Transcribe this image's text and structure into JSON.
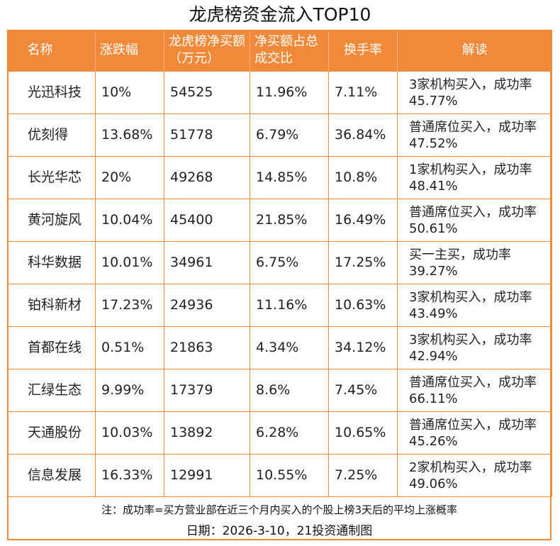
{
  "title": "龙虎榜资金流入TOP10",
  "headers": {
    "name": "名称",
    "change": "涨跌幅",
    "net_buy": "龙虎榜净买额（万元）",
    "ratio": "净买额占总成交比",
    "turnover": "换手率",
    "read": "解读"
  },
  "rows": [
    {
      "name": "光迅科技",
      "change": "10%",
      "net_buy": "54525",
      "ratio": "11.96%",
      "turnover": "7.11%",
      "read": "3家机构买入，成功率45.77%"
    },
    {
      "name": "优刻得",
      "change": "13.68%",
      "net_buy": "51778",
      "ratio": "6.79%",
      "turnover": "36.84%",
      "read": "普通席位买入，成功率47.52%"
    },
    {
      "name": "长光华芯",
      "change": "20%",
      "net_buy": "49268",
      "ratio": "14.85%",
      "turnover": "10.8%",
      "read": "1家机构买入，成功率48.41%"
    },
    {
      "name": "黄河旋风",
      "change": "10.04%",
      "net_buy": "45400",
      "ratio": "21.85%",
      "turnover": "16.49%",
      "read": "普通席位买入，成功率50.61%"
    },
    {
      "name": "科华数据",
      "change": "10.01%",
      "net_buy": "34961",
      "ratio": "6.75%",
      "turnover": "17.25%",
      "read": "买一主买，成功率39.27%"
    },
    {
      "name": "铂科新材",
      "change": "17.23%",
      "net_buy": "24936",
      "ratio": "11.16%",
      "turnover": "10.63%",
      "read": "3家机构买入，成功率43.49%"
    },
    {
      "name": "首都在线",
      "change": "0.51%",
      "net_buy": "21863",
      "ratio": "4.34%",
      "turnover": "34.12%",
      "read": "3家机构买入，成功率42.94%"
    },
    {
      "name": "汇绿生态",
      "change": "9.99%",
      "net_buy": "17379",
      "ratio": "8.6%",
      "turnover": "7.45%",
      "read": "普通席位买入，成功率66.11%"
    },
    {
      "name": "天通股份",
      "change": "10.03%",
      "net_buy": "13892",
      "ratio": "6.28%",
      "turnover": "10.65%",
      "read": "普通席位买入，成功率45.26%"
    },
    {
      "name": "信息发展",
      "change": "16.33%",
      "net_buy": "12991",
      "ratio": "10.55%",
      "turnover": "7.25%",
      "read": "2家机构买入，成功率49.06%"
    }
  ],
  "note": "注：成功率=买方营业部在近三个月内买入的个股上榜3天后的平均上涨概率",
  "date_line": "日期：2026-3-10，21投资通制图",
  "colors": {
    "accent": "#f08a3a",
    "header_text": "#ffffff"
  }
}
